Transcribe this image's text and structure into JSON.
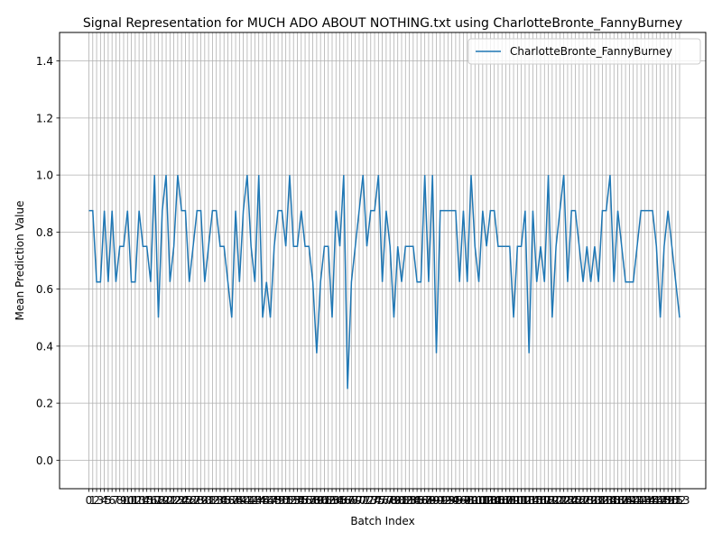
{
  "chart_data": {
    "type": "line",
    "title": "Signal Representation for MUCH ADO ABOUT NOTHING.txt using CharlotteBronte_FannyBurney",
    "xlabel": "Batch Index",
    "ylabel": "Mean Prediction Value",
    "ylim": [
      -0.1,
      1.5
    ],
    "y_ticks": [
      0.0,
      0.2,
      0.4,
      0.6,
      0.8,
      1.0,
      1.2,
      1.4
    ],
    "x_ticks": "every integer batch index from 0 to 153",
    "grid": true,
    "legend_position": "top-right",
    "color": "#1f77b4",
    "series": [
      {
        "name": "CharlotteBronte_FannyBurney",
        "values": [
          0.875,
          0.875,
          0.625,
          0.625,
          0.875,
          0.625,
          0.875,
          0.625,
          0.75,
          0.75,
          0.875,
          0.625,
          0.625,
          0.875,
          0.75,
          0.75,
          0.625,
          1.0,
          0.5,
          0.875,
          1.0,
          0.625,
          0.75,
          1.0,
          0.875,
          0.875,
          0.625,
          0.75,
          0.875,
          0.875,
          0.625,
          0.75,
          0.875,
          0.875,
          0.75,
          0.75,
          0.625,
          0.5,
          0.875,
          0.625,
          0.875,
          1.0,
          0.75,
          0.625,
          1.0,
          0.5,
          0.625,
          0.5,
          0.75,
          0.875,
          0.875,
          0.75,
          1.0,
          0.75,
          0.75,
          0.875,
          0.75,
          0.75,
          0.625,
          0.375,
          0.625,
          0.75,
          0.75,
          0.5,
          0.875,
          0.75,
          1.0,
          0.25,
          0.625,
          0.75,
          0.875,
          1.0,
          0.75,
          0.875,
          0.875,
          1.0,
          0.625,
          0.875,
          0.75,
          0.5,
          0.75,
          0.625,
          0.75,
          0.75,
          0.75,
          0.625,
          0.625,
          1.0,
          0.625,
          1.0,
          0.375,
          0.875,
          0.875,
          0.875,
          0.875,
          0.875,
          0.625,
          0.875,
          0.625,
          1.0,
          0.75,
          0.625,
          0.875,
          0.75,
          0.875,
          0.875,
          0.75,
          0.75,
          0.75,
          0.75,
          0.5,
          0.75,
          0.75,
          0.875,
          0.375,
          0.875,
          0.625,
          0.75,
          0.625,
          1.0,
          0.5,
          0.75,
          0.875,
          1.0,
          0.625,
          0.875,
          0.875,
          0.75,
          0.625,
          0.75,
          0.625,
          0.75,
          0.625,
          0.875,
          0.875,
          1.0,
          0.625,
          0.875,
          0.75,
          0.625,
          0.625,
          0.625,
          0.75,
          0.875,
          0.875,
          0.875,
          0.875,
          0.75,
          0.5,
          0.75,
          0.875,
          0.75,
          0.625,
          0.5
        ]
      }
    ]
  }
}
